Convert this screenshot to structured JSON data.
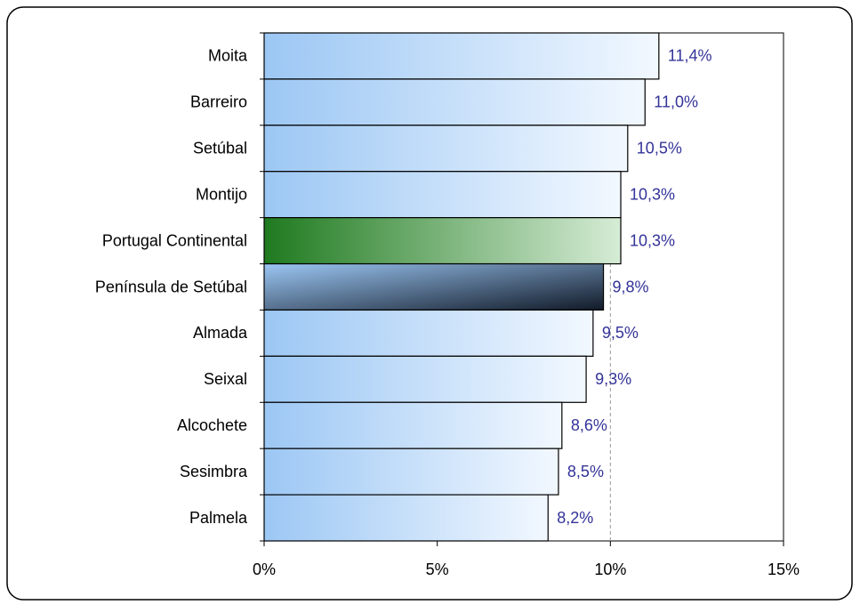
{
  "chart_data": {
    "type": "hbar",
    "categories": [
      "Moita",
      "Barreiro",
      "Setúbal",
      "Montijo",
      "Portugal Continental",
      "Península de Setúbal",
      "Almada",
      "Seixal",
      "Alcochete",
      "Sesimbra",
      "Palmela"
    ],
    "values": [
      11.4,
      11.0,
      10.5,
      10.3,
      10.3,
      9.8,
      9.5,
      9.3,
      8.6,
      8.5,
      8.2
    ],
    "value_labels": [
      "11,4%",
      "11,0%",
      "10,5%",
      "10,3%",
      "10,3%",
      "9,8%",
      "9,5%",
      "9,3%",
      "8,6%",
      "8,5%",
      "8,2%"
    ],
    "colors": [
      [
        "#9cc7f4",
        "#f2f8ff"
      ],
      [
        "#9cc7f4",
        "#f2f8ff"
      ],
      [
        "#9cc7f4",
        "#f2f8ff"
      ],
      [
        "#9cc7f4",
        "#f2f8ff"
      ],
      [
        "#1f7a1f",
        "#d6ecd6"
      ],
      [
        "#9cc7f4",
        "#111a28"
      ],
      [
        "#9cc7f4",
        "#f2f8ff"
      ],
      [
        "#9cc7f4",
        "#f2f8ff"
      ],
      [
        "#9cc7f4",
        "#f2f8ff"
      ],
      [
        "#9cc7f4",
        "#f2f8ff"
      ],
      [
        "#9cc7f4",
        "#f2f8ff"
      ]
    ],
    "label_color": "#333399",
    "xlim": [
      0,
      15
    ],
    "xticks": [
      {
        "value": 0,
        "label": "0%"
      },
      {
        "value": 5,
        "label": "5%"
      },
      {
        "value": 10,
        "label": "10%"
      },
      {
        "value": 15,
        "label": "15%"
      }
    ],
    "reference_line": 10
  }
}
